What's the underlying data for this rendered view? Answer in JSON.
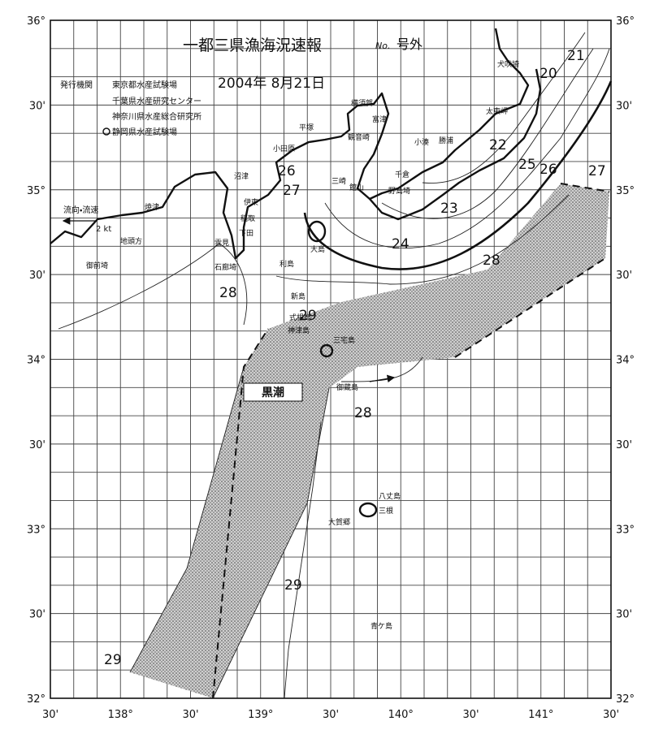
{
  "header": {
    "title": "一都三県漁海況速報",
    "number_mark": "No.",
    "extra": "号外",
    "date": "2004年 8月21日"
  },
  "issuers": [
    "発行機関",
    "東京都水産試験場",
    "千葉県水産研究センター",
    "神奈川県水産総合研究所",
    "静岡県水産試験場"
  ],
  "legend": {
    "label": "流向・流速",
    "speed": "2 kt"
  },
  "current_label": "黒潮",
  "latitude_labels": [
    "36°",
    "30'",
    "35°",
    "30'",
    "34°",
    "30'",
    "33°",
    "30'",
    "32°"
  ],
  "longitude_labels": [
    "30'",
    "138°",
    "30'",
    "139°",
    "30'",
    "140°",
    "30'",
    "141°",
    "30'"
  ],
  "isotherms": [
    "21",
    "20",
    "22",
    "25",
    "26",
    "27",
    "26",
    "27",
    "23",
    "24",
    "28",
    "28",
    "29",
    "28",
    "29",
    "29"
  ],
  "places": [
    "犬吠埼",
    "太東岬",
    "勝浦",
    "小湊",
    "千倉",
    "野島埼",
    "富津",
    "観音崎",
    "横須賀",
    "平塚",
    "小田原",
    "三崎",
    "館山",
    "大島",
    "沼津",
    "伊東",
    "稲取",
    "下田",
    "焼津",
    "地頭方",
    "御前埼",
    "雲見",
    "石廊埼",
    "利島",
    "新島",
    "式根島",
    "神津島",
    "三宅島",
    "御蔵島",
    "八丈島",
    "三根",
    "大賀郷",
    "青ケ島"
  ]
}
